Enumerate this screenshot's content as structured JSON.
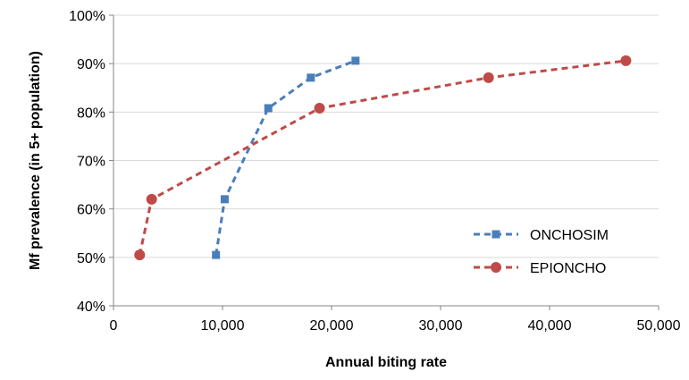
{
  "chart_data": {
    "type": "line",
    "title": "",
    "xlabel": "Annual biting rate",
    "ylabel": "Mf prevalence (in 5+ population)",
    "xlim": [
      0,
      50000
    ],
    "ylim": [
      40,
      100
    ],
    "x_ticks": [
      0,
      10000,
      20000,
      30000,
      40000,
      50000
    ],
    "x_tick_labels": [
      "0",
      "10,000",
      "20,000",
      "30,000",
      "40,000",
      "50,000"
    ],
    "y_ticks": [
      40,
      50,
      60,
      70,
      80,
      90,
      100
    ],
    "y_tick_labels": [
      "40%",
      "50%",
      "60%",
      "70%",
      "80%",
      "90%",
      "100%"
    ],
    "grid": "horizontal",
    "legend_position": "bottom-right",
    "series": [
      {
        "name": "ONCHOSIM",
        "color": "#4a7ebb",
        "marker": "square",
        "line_style": "dashed",
        "x": [
          9400,
          10200,
          14200,
          18100,
          22200
        ],
        "y": [
          50.5,
          62.0,
          80.8,
          87.1,
          90.6
        ]
      },
      {
        "name": "EPIONCHO",
        "color": "#be4b48",
        "marker": "circle",
        "line_style": "dashed",
        "x": [
          2400,
          3500,
          18900,
          34400,
          47000
        ],
        "y": [
          50.5,
          62.0,
          80.8,
          87.1,
          90.6
        ]
      }
    ]
  }
}
